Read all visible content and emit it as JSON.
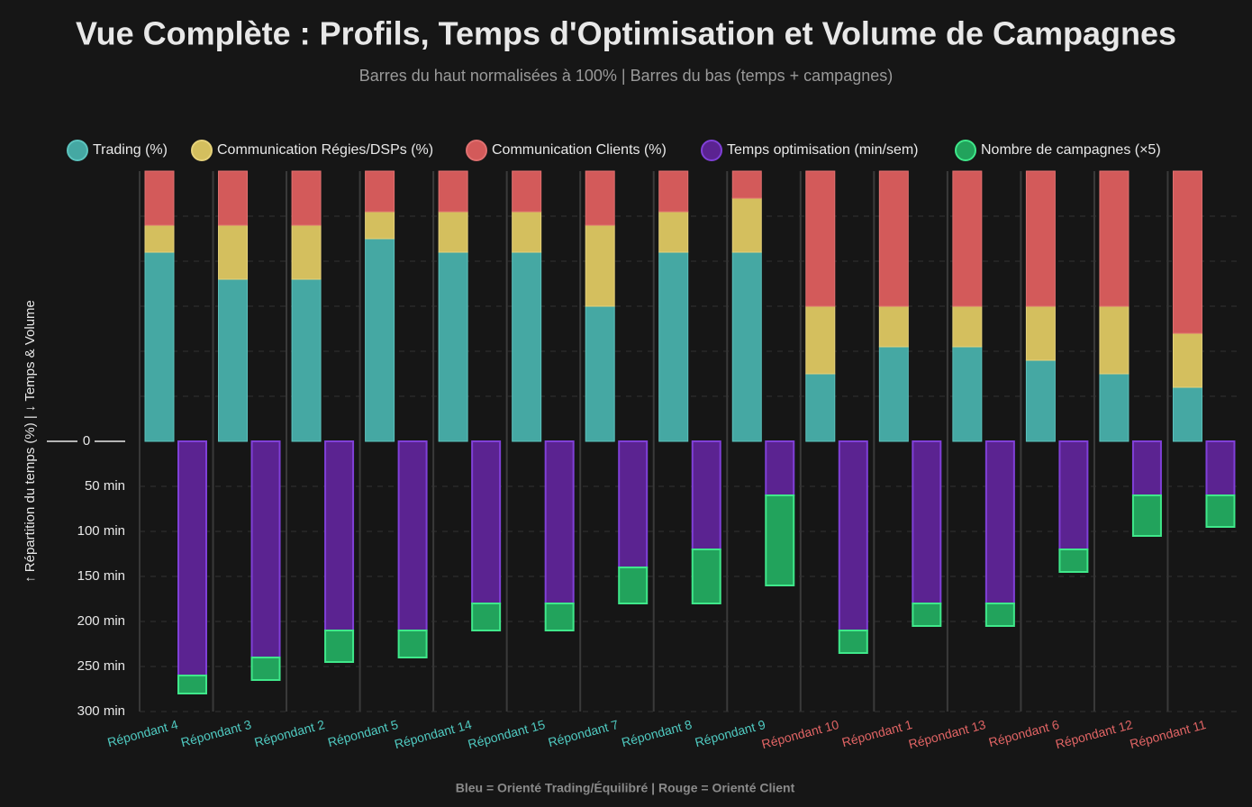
{
  "chart_data": {
    "type": "bar",
    "title": "Vue Complète : Profils, Temps d'Optimisation et Volume de Campagnes",
    "subtitle": "Barres du haut normalisées à 100% | Barres du bas (temps + campagnes)",
    "y_label": "↑ Répartition du temps (%)  |  ↓ Temps & Volume",
    "note": "Bleu = Orienté Trading/Équilibré  |  Rouge = Orienté Client",
    "categories": [
      "Répondant 4",
      "Répondant 3",
      "Répondant 2",
      "Répondant 5",
      "Répondant 14",
      "Répondant 15",
      "Répondant 7",
      "Répondant 8",
      "Répondant 9",
      "Répondant 10",
      "Répondant 1",
      "Répondant 13",
      "Répondant 6",
      "Répondant 12",
      "Répondant 11"
    ],
    "category_colors": [
      "#4fc9c0",
      "#4fc9c0",
      "#4fc9c0",
      "#4fc9c0",
      "#4fc9c0",
      "#4fc9c0",
      "#4fc9c0",
      "#4fc9c0",
      "#4fc9c0",
      "#e06464",
      "#e06464",
      "#e06464",
      "#e06464",
      "#e06464",
      "#e06464"
    ],
    "top_series": [
      {
        "name": "Trading (%)",
        "color": "#45a8a3",
        "border": "#5cc4be",
        "values": [
          70,
          60,
          60,
          75,
          70,
          70,
          50,
          70,
          70,
          25,
          35,
          35,
          30,
          25,
          20
        ]
      },
      {
        "name": "Communication Régies/DSPs (%)",
        "color": "#d4bf5e",
        "border": "#e6d27a",
        "values": [
          10,
          20,
          20,
          10,
          15,
          15,
          30,
          15,
          20,
          25,
          15,
          15,
          20,
          25,
          20
        ]
      },
      {
        "name": "Communication Clients (%)",
        "color": "#d35a5a",
        "border": "#e07070",
        "values": [
          20,
          20,
          20,
          15,
          15,
          15,
          20,
          15,
          10,
          50,
          50,
          50,
          50,
          50,
          60
        ]
      }
    ],
    "top_ylim": [
      0,
      100
    ],
    "bottom_series": [
      {
        "name": "Temps optimisation (min/sem)",
        "color": "#5b2391",
        "border": "#8040d8",
        "values": [
          260,
          240,
          210,
          210,
          180,
          180,
          140,
          120,
          60,
          210,
          180,
          180,
          120,
          60,
          60
        ]
      },
      {
        "name": "Nombre de campagnes (×5)",
        "color": "#22a35c",
        "border": "#3fe88a",
        "values": [
          20,
          25,
          35,
          30,
          30,
          30,
          40,
          60,
          100,
          25,
          25,
          25,
          25,
          45,
          35
        ]
      }
    ],
    "ylim": [
      0,
      300
    ],
    "yticks": [
      0,
      {
        "value": 50,
        "label": "50 min"
      },
      {
        "value": 100,
        "label": "100 min"
      },
      {
        "value": 150,
        "label": "150 min"
      },
      {
        "value": 200,
        "label": "200 min"
      },
      {
        "value": 250,
        "label": "250 min"
      },
      {
        "value": 300,
        "label": "300 min"
      }
    ],
    "grid": true
  }
}
